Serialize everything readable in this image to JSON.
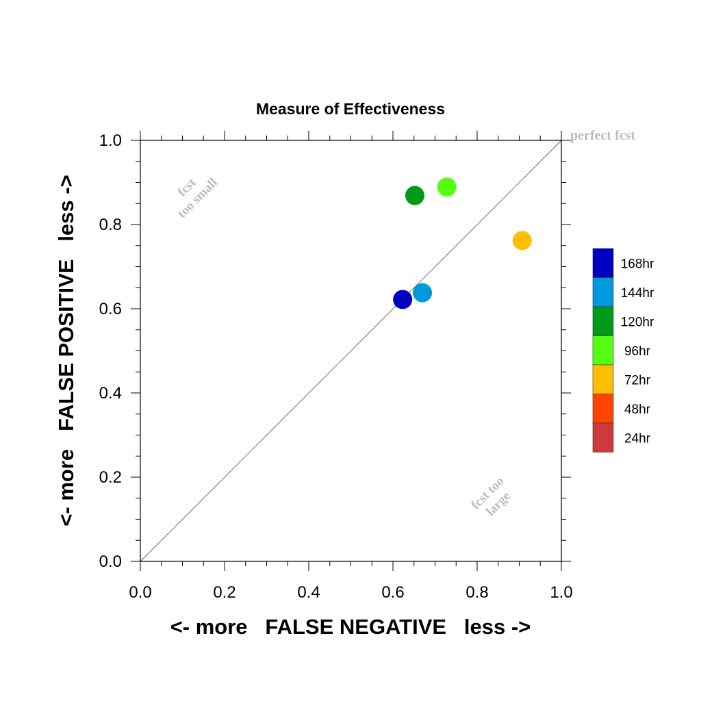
{
  "chart_data": {
    "type": "scatter",
    "title": "Measure of Effectiveness",
    "xlabel": "<- more   FALSE NEGATIVE   less ->",
    "ylabel": "<- more   FALSE POSITIVE   less ->",
    "xlim": [
      0.0,
      1.0
    ],
    "ylim": [
      0.0,
      1.0
    ],
    "xticks": [
      "0.0",
      "0.2",
      "0.4",
      "0.6",
      "0.8",
      "1.0"
    ],
    "yticks": [
      "0.0",
      "0.2",
      "0.4",
      "0.6",
      "0.8",
      "1.0"
    ],
    "reference_line": "diagonal",
    "annotations": {
      "perfect": "perfect fcst",
      "too_small": [
        "fcst",
        "too small"
      ],
      "too_large": [
        "fcst too",
        "large"
      ]
    },
    "points": [
      {
        "label": "168hr",
        "x": 0.623,
        "y": 0.622,
        "color": "#0000c0"
      },
      {
        "label": "144hr",
        "x": 0.67,
        "y": 0.638,
        "color": "#0099dd"
      },
      {
        "label": "120hr",
        "x": 0.652,
        "y": 0.869,
        "color": "#009a1a"
      },
      {
        "label": "96hr",
        "x": 0.728,
        "y": 0.889,
        "color": "#55ff11"
      },
      {
        "label": "72hr",
        "x": 0.907,
        "y": 0.762,
        "color": "#ffbf00"
      }
    ],
    "legend": {
      "placement": "right",
      "entries": [
        {
          "label": "168hr",
          "color": "#0000c0"
        },
        {
          "label": "144hr",
          "color": "#0099dd"
        },
        {
          "label": "120hr",
          "color": "#009a1a"
        },
        {
          "label": "96hr",
          "color": "#55ff11"
        },
        {
          "label": "72hr",
          "color": "#ffbf00"
        },
        {
          "label": "48hr",
          "color": "#ff4400"
        },
        {
          "label": "24hr",
          "color": "#cc3a3a"
        }
      ]
    },
    "annotation_color": "#bbbbbb"
  }
}
